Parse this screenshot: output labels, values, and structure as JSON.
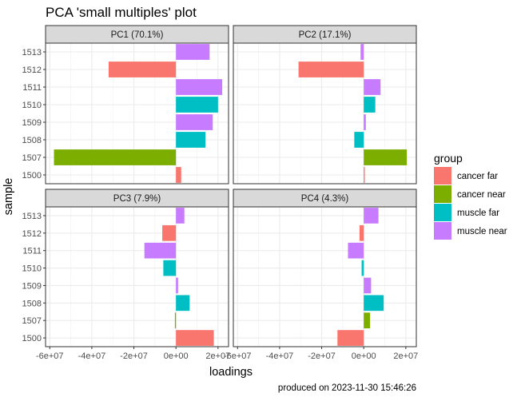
{
  "chart_data": {
    "type": "bar",
    "title": "PCA 'small multiples' plot",
    "xlabel": "loadings",
    "ylabel": "sample",
    "xlim": [
      -62000000.0,
      25000000.0
    ],
    "x_ticks": [
      -60000000.0,
      -40000000.0,
      -20000000.0,
      0,
      20000000.0
    ],
    "x_tick_labels": [
      "-6e+07",
      "-4e+07",
      "-2e+07",
      "0e+00",
      "2e+07"
    ],
    "categories": [
      "1513",
      "1512",
      "1511",
      "1510",
      "1509",
      "1508",
      "1507",
      "1500"
    ],
    "category_groups": [
      "muscle near",
      "cancer far",
      "muscle near",
      "muscle far",
      "muscle near",
      "muscle far",
      "cancer near",
      "cancer far"
    ],
    "legend": {
      "title": "group",
      "position": "right",
      "items": [
        {
          "label": "cancer far",
          "color": "#F8766D"
        },
        {
          "label": "cancer near",
          "color": "#7CAE00"
        },
        {
          "label": "muscle far",
          "color": "#00BFC4"
        },
        {
          "label": "muscle near",
          "color": "#C77CFF"
        }
      ]
    },
    "grid": true,
    "panels": [
      {
        "label": "PC1 (70.1%)",
        "values": [
          16000000,
          -32000000,
          22000000,
          20000000,
          17500000,
          14000000,
          -58000000,
          2500000
        ]
      },
      {
        "label": "PC2 (17.1%)",
        "values": [
          -1500000,
          -31000000,
          8000000,
          5500000,
          1000000,
          -4500000,
          20500000,
          500000
        ]
      },
      {
        "label": "PC3 (7.9%)",
        "values": [
          4000000,
          -6500000,
          -15000000,
          -6000000,
          1000000,
          6500000,
          -500000,
          18000000
        ]
      },
      {
        "label": "PC4 (4.3%)",
        "values": [
          7000000,
          -2000000,
          -7500000,
          -1000000,
          3500000,
          9500000,
          3000000,
          -12500000
        ]
      }
    ]
  },
  "caption": "produced on 2023-11-30 15:46:26"
}
